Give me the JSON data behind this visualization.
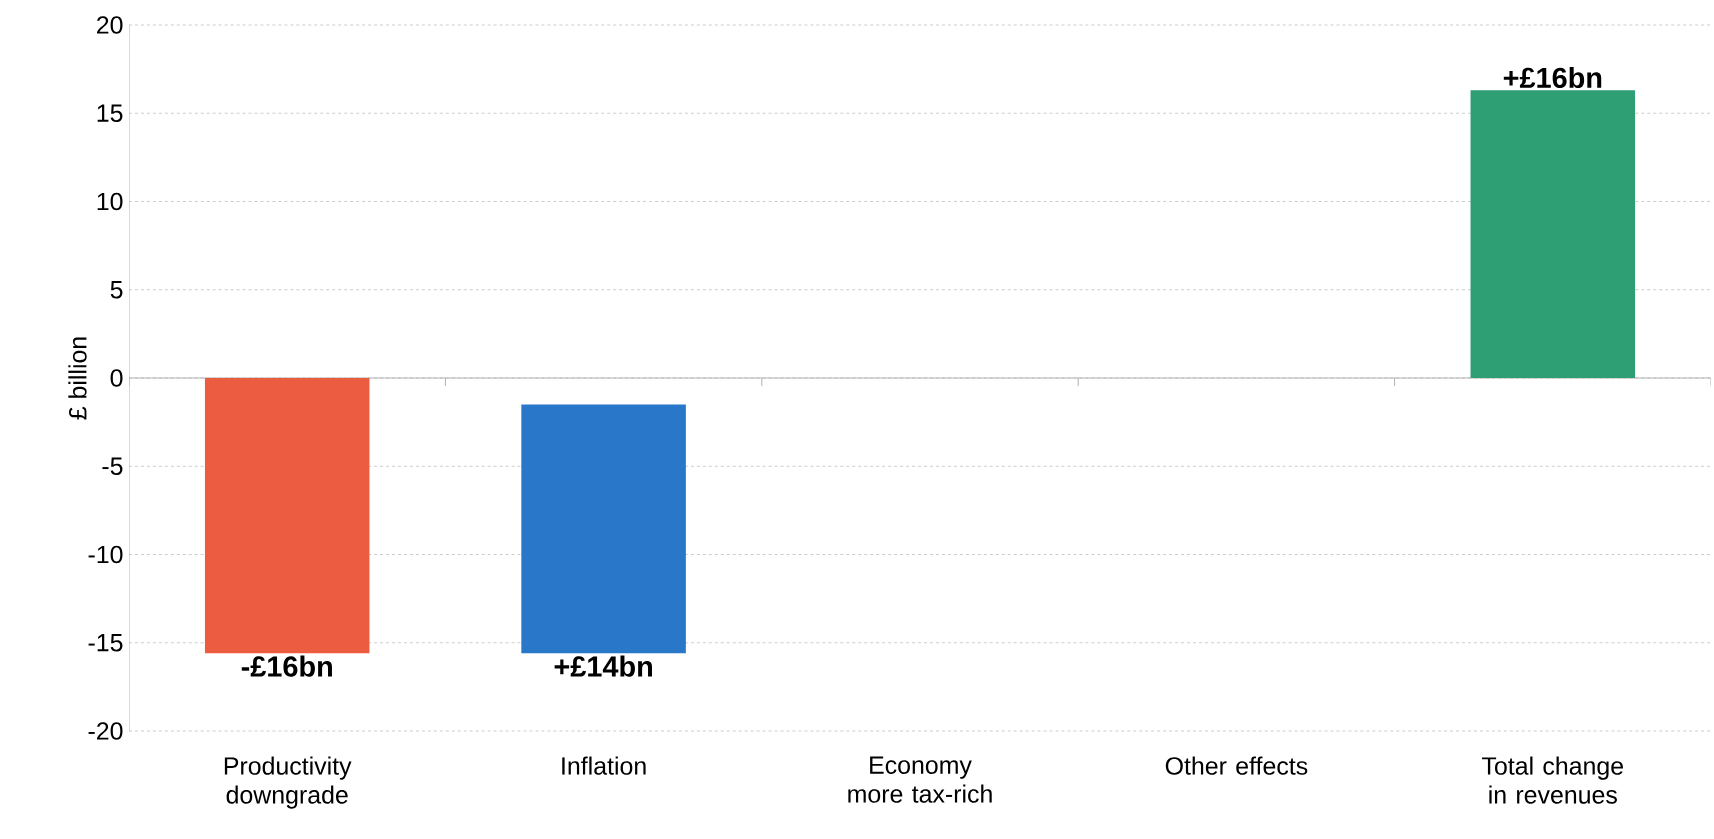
{
  "chart_data": {
    "type": "bar",
    "ylabel": "£ billion",
    "categories": [
      "Productivity downgrade",
      "Inflation",
      "Economy more tax-rich",
      "Other effects",
      "Total change in revenues"
    ],
    "values": [
      -15.6,
      14.1,
      null,
      null,
      16.3
    ],
    "base": [
      0,
      -15.6,
      null,
      null,
      0
    ],
    "colors": [
      "#eb5c40",
      "#2877c8",
      null,
      null,
      "#2e9e74"
    ],
    "value_labels": [
      "-£16bn",
      "+£14bn",
      null,
      null,
      "+£16bn"
    ],
    "ylim": [
      -20,
      20
    ],
    "yticks": [
      -20,
      -15,
      -10,
      -5,
      0,
      5,
      10,
      15,
      20
    ],
    "grid": "y"
  }
}
